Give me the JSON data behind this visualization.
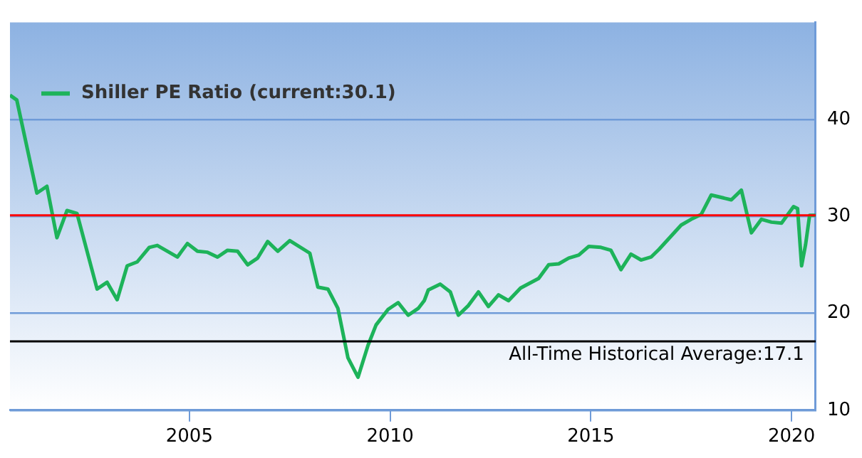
{
  "chart_data": {
    "type": "line",
    "legend": "top left",
    "grid": "y",
    "marker": "none",
    "line_style": "solid",
    "x": [
      2000.53,
      2000.7,
      2001.2,
      2001.45,
      2001.7,
      2001.95,
      2002.2,
      2002.7,
      2002.95,
      2003.2,
      2003.45,
      2003.7,
      2004.0,
      2004.2,
      2004.7,
      2004.95,
      2005.2,
      2005.45,
      2005.7,
      2005.95,
      2006.2,
      2006.45,
      2006.7,
      2006.95,
      2007.2,
      2007.5,
      2008.0,
      2008.2,
      2008.45,
      2008.7,
      2008.95,
      2009.2,
      2009.45,
      2009.65,
      2009.95,
      2010.2,
      2010.45,
      2010.7,
      2010.85,
      2010.95,
      2011.25,
      2011.5,
      2011.7,
      2011.95,
      2012.2,
      2012.45,
      2012.7,
      2012.95,
      2013.25,
      2013.7,
      2013.95,
      2014.2,
      2014.45,
      2014.7,
      2014.95,
      2015.25,
      2015.5,
      2015.75,
      2016.0,
      2016.25,
      2016.5,
      2016.7,
      2017.25,
      2017.5,
      2017.75,
      2018.0,
      2018.3,
      2018.5,
      2018.75,
      2019.0,
      2019.25,
      2019.5,
      2019.75,
      2020.05,
      2020.15,
      2020.25,
      2020.35,
      2020.45,
      2020.6
    ],
    "series": [
      {
        "name": "Shiller PE Ratio (current:30.1)",
        "color": "#1db35a",
        "values": [
          42.5,
          42.0,
          32.4,
          33.1,
          27.8,
          30.6,
          30.3,
          22.5,
          23.2,
          21.4,
          24.9,
          25.3,
          26.8,
          27.0,
          25.8,
          27.2,
          26.4,
          26.3,
          25.8,
          26.5,
          26.4,
          25.0,
          25.7,
          27.4,
          26.4,
          27.5,
          26.2,
          22.7,
          22.5,
          20.5,
          15.4,
          13.4,
          16.7,
          18.8,
          20.4,
          21.1,
          19.8,
          20.5,
          21.3,
          22.4,
          23.0,
          22.2,
          19.8,
          20.8,
          22.2,
          20.7,
          21.9,
          21.3,
          22.6,
          23.6,
          25.0,
          25.1,
          25.7,
          26.0,
          26.9,
          26.8,
          26.5,
          24.5,
          26.1,
          25.5,
          25.8,
          26.6,
          29.1,
          29.7,
          30.2,
          32.2,
          31.9,
          31.7,
          32.7,
          28.3,
          29.7,
          29.4,
          29.3,
          31.0,
          30.8,
          24.9,
          27.1,
          30.1,
          30.1
        ]
      }
    ],
    "xlim": [
      2000.53,
      2020.6
    ],
    "xticks": [
      2005,
      2010,
      2015,
      2020
    ],
    "ylim": [
      10,
      50
    ],
    "yticks": [
      10,
      20,
      30,
      40
    ],
    "ref_lines": [
      {
        "axis": "y",
        "value": 30.1,
        "color": "#ff0000"
      },
      {
        "axis": "y",
        "value": 17.1,
        "label": "All-Time Historical Average:17.1",
        "color": "#000000"
      }
    ]
  }
}
